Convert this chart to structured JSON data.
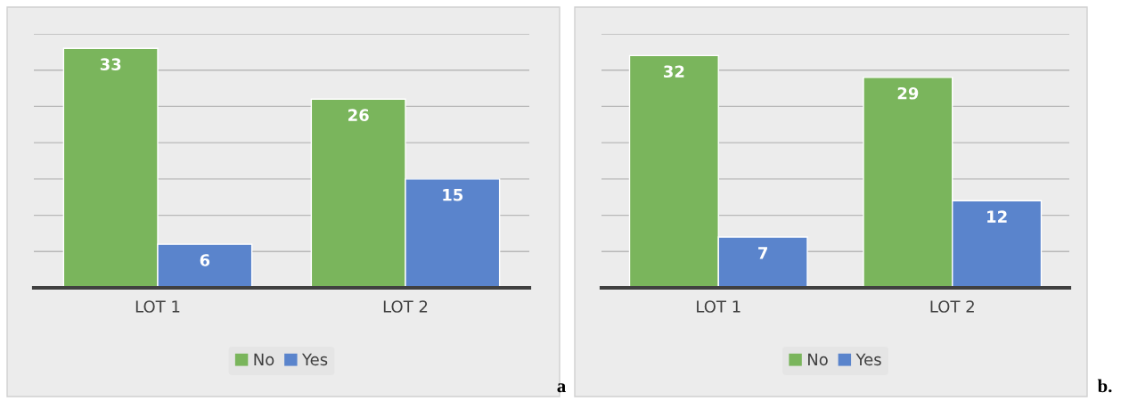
{
  "chart_data": [
    {
      "type": "bar",
      "categories": [
        "LOT 1",
        "LOT 2"
      ],
      "series": [
        {
          "name": "No",
          "color": "#7ab55c",
          "values": [
            33,
            26
          ]
        },
        {
          "name": "Yes",
          "color": "#5a84cc",
          "values": [
            6,
            15
          ]
        }
      ],
      "ylim": [
        0,
        35
      ],
      "yticks": [
        {
          "value": 0,
          "label": null
        },
        {
          "value": 5,
          "label": null
        },
        {
          "value": 10,
          "label": null
        },
        {
          "value": 15,
          "label": null
        },
        {
          "value": 20,
          "label": null
        },
        {
          "value": 25,
          "label": null
        },
        {
          "value": 30,
          "label": null
        },
        {
          "value": 35,
          "label": null
        }
      ],
      "tick_labels": "x",
      "grid": "y",
      "legend": "bottom",
      "data_labels": true,
      "annotations": [
        "a"
      ]
    },
    {
      "type": "bar",
      "categories": [
        "LOT 1",
        "LOT 2"
      ],
      "series": [
        {
          "name": "No",
          "color": "#7ab55c",
          "values": [
            32,
            29
          ]
        },
        {
          "name": "Yes",
          "color": "#5a84cc",
          "values": [
            7,
            12
          ]
        }
      ],
      "ylim": [
        0,
        35
      ],
      "yticks": [
        {
          "value": 0,
          "label": null
        },
        {
          "value": 5,
          "label": null
        },
        {
          "value": 10,
          "label": null
        },
        {
          "value": 15,
          "label": null
        },
        {
          "value": 20,
          "label": null
        },
        {
          "value": 25,
          "label": null
        },
        {
          "value": 30,
          "label": null
        },
        {
          "value": 35,
          "label": null
        }
      ],
      "tick_labels": "x",
      "grid": "y",
      "legend": "bottom",
      "data_labels": true,
      "annotations": [
        "b."
      ]
    }
  ]
}
